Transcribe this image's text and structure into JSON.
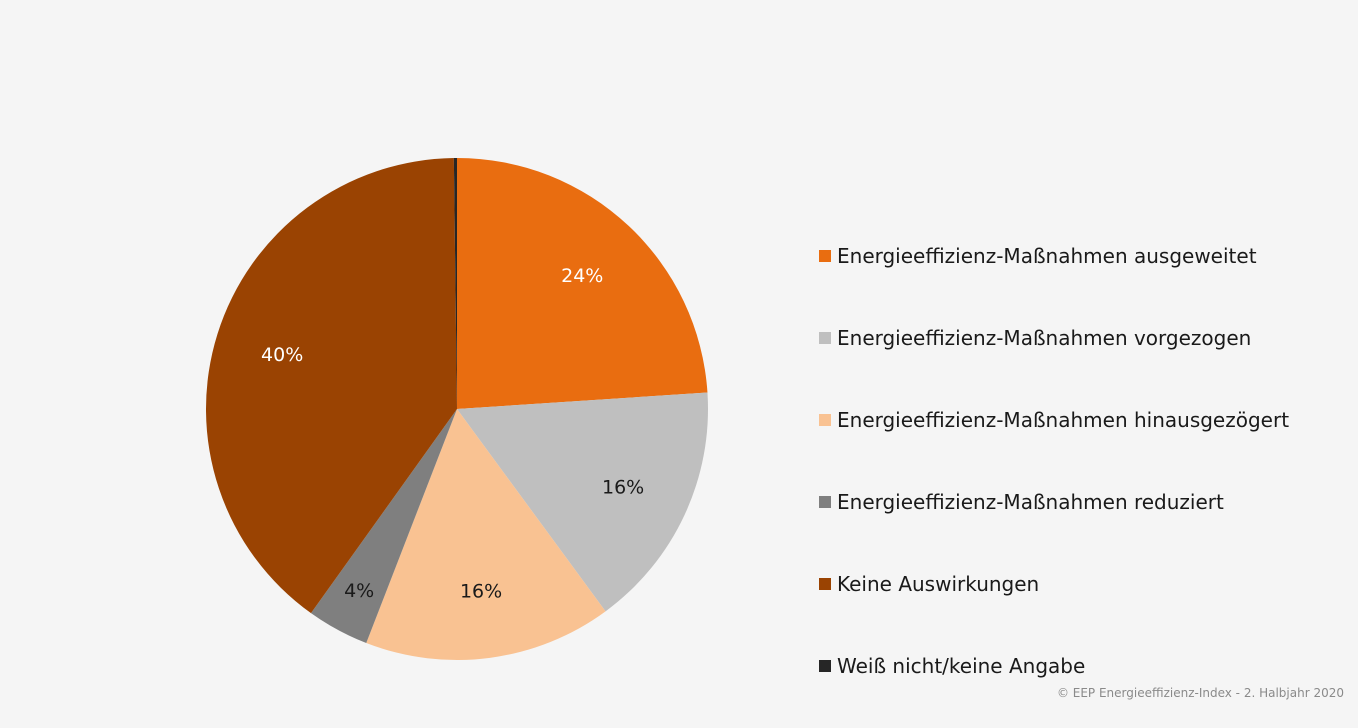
{
  "chart_data": {
    "type": "pie",
    "slices": [
      {
        "label": "Energieeffizienz-Maßnahmen ausgeweitet",
        "value": 24,
        "display": "24%",
        "color": "#e96d10",
        "label_color": "#ffffff"
      },
      {
        "label": "Energieeffizienz-Maßnahmen vorgezogen",
        "value": 16,
        "display": "16%",
        "color": "#bfbfbf",
        "label_color": "#1a1a1a"
      },
      {
        "label": "Energieeffizienz-Maßnahmen hinausgezögert",
        "value": 16,
        "display": "16%",
        "color": "#f9c292",
        "label_color": "#1a1a1a"
      },
      {
        "label": "Energieeffizienz-Maßnahmen reduziert",
        "value": 4,
        "display": "4%",
        "color": "#7f7f7f",
        "label_color": "#1a1a1a"
      },
      {
        "label": "Keine Auswirkungen",
        "value": 40,
        "display": "40%",
        "color": "#9a4302",
        "label_color": "#ffffff"
      },
      {
        "label": "Weiß nicht/keine Angabe",
        "value": 0.2,
        "display": "",
        "color": "#262626",
        "label_color": "#ffffff"
      }
    ],
    "legend_position": "right"
  },
  "footer": "© EEP Energieeffizienz-Index - 2. Halbjahr 2020"
}
